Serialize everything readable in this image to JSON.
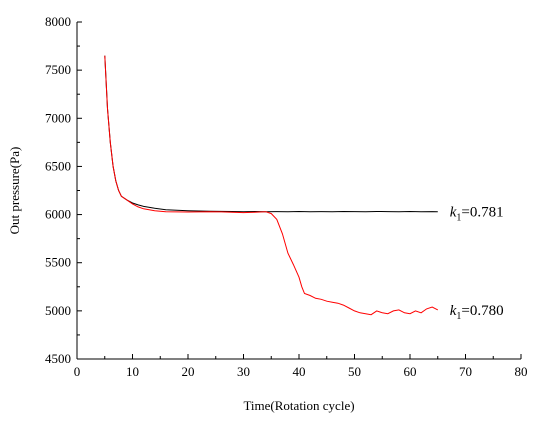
{
  "chart_data": {
    "type": "line",
    "title": "",
    "xlabel": "Time(Rotation cycle)",
    "ylabel": "Out pressure(Pa)",
    "xlim": [
      0,
      80
    ],
    "ylim": [
      4500,
      8000
    ],
    "x_ticks": [
      0,
      10,
      20,
      30,
      40,
      50,
      60,
      70,
      80
    ],
    "y_ticks": [
      4500,
      5000,
      5500,
      6000,
      6500,
      7000,
      7500,
      8000
    ],
    "x_tick_labels": [
      "0",
      "10",
      "20",
      "30",
      "40",
      "50",
      "60",
      "70",
      "80"
    ],
    "y_tick_labels": [
      "4500",
      "5000",
      "5500",
      "6000",
      "6500",
      "7000",
      "7500",
      "8000"
    ],
    "grid": false,
    "legend": "none",
    "series": [
      {
        "label_var": "k",
        "label_sub": "1",
        "label_value": "=0.781",
        "color": "#000000",
        "x": [
          5,
          5.5,
          6,
          6.5,
          7,
          7.5,
          8,
          9,
          10,
          11,
          12,
          14,
          16,
          18,
          20,
          22,
          24,
          26,
          28,
          30,
          32,
          34,
          36,
          38,
          40,
          42,
          44,
          46,
          48,
          50,
          52,
          54,
          56,
          58,
          60,
          62,
          64,
          65
        ],
        "y": [
          7650,
          7100,
          6750,
          6500,
          6350,
          6250,
          6190,
          6150,
          6120,
          6100,
          6085,
          6065,
          6050,
          6045,
          6040,
          6037,
          6035,
          6033,
          6032,
          6030,
          6032,
          6030,
          6031,
          6030,
          6032,
          6030,
          6031,
          6030,
          6032,
          6031,
          6030,
          6032,
          6031,
          6030,
          6032,
          6030,
          6031,
          6030
        ]
      },
      {
        "label_var": "k",
        "label_sub": "1",
        "label_value": "=0.780",
        "color": "#ff0000",
        "x": [
          5,
          5.5,
          6,
          6.5,
          7,
          7.5,
          8,
          9,
          10,
          11,
          12,
          14,
          16,
          18,
          20,
          22,
          24,
          26,
          28,
          30,
          32,
          34,
          35,
          36,
          37,
          38,
          39,
          40,
          40.5,
          41,
          42,
          43,
          44,
          45,
          46,
          47,
          48,
          49,
          50,
          51,
          52,
          53,
          54,
          55,
          56,
          57,
          58,
          59,
          60,
          61,
          62,
          63,
          64,
          65
        ],
        "y": [
          7650,
          7100,
          6750,
          6500,
          6350,
          6250,
          6190,
          6150,
          6110,
          6080,
          6060,
          6040,
          6030,
          6028,
          6027,
          6028,
          6030,
          6028,
          6025,
          6020,
          6025,
          6030,
          6010,
          5950,
          5800,
          5600,
          5480,
          5350,
          5250,
          5180,
          5160,
          5130,
          5120,
          5100,
          5090,
          5080,
          5060,
          5030,
          5000,
          4980,
          4970,
          4960,
          5000,
          4980,
          4970,
          5000,
          5010,
          4980,
          4970,
          5000,
          4980,
          5020,
          5040,
          5010
        ]
      }
    ]
  }
}
